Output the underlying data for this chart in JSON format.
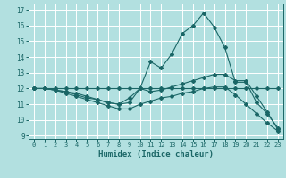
{
  "xlabel": "Humidex (Indice chaleur)",
  "bg_color": "#b2e0e0",
  "grid_color": "#ffffff",
  "line_color": "#1a6666",
  "xlim": [
    -0.5,
    23.5
  ],
  "ylim": [
    8.8,
    17.4
  ],
  "xticks": [
    0,
    1,
    2,
    3,
    4,
    5,
    6,
    7,
    8,
    9,
    10,
    11,
    12,
    13,
    14,
    15,
    16,
    17,
    18,
    19,
    20,
    21,
    22,
    23
  ],
  "yticks": [
    9,
    10,
    11,
    12,
    13,
    14,
    15,
    16,
    17
  ],
  "line1_x": [
    0,
    1,
    2,
    3,
    4,
    5,
    6,
    7,
    8,
    9,
    10,
    11,
    12,
    13,
    14,
    15,
    16,
    17,
    18,
    19,
    20,
    21,
    22,
    23
  ],
  "line1_y": [
    12,
    12,
    11.9,
    11.8,
    11.7,
    11.5,
    11.3,
    11.1,
    11.0,
    11.1,
    12.0,
    13.7,
    13.3,
    14.2,
    15.5,
    16.0,
    16.8,
    15.9,
    14.6,
    12.4,
    12.4,
    11.1,
    10.4,
    9.5
  ],
  "line2_x": [
    0,
    1,
    2,
    3,
    4,
    5,
    6,
    7,
    8,
    9,
    10,
    11,
    12,
    13,
    14,
    15,
    16,
    17,
    18,
    19,
    20,
    21,
    22,
    23
  ],
  "line2_y": [
    12,
    12,
    12,
    12,
    12,
    12,
    12,
    12,
    12,
    12,
    12,
    12,
    12,
    12,
    12,
    12,
    12,
    12,
    12,
    12,
    12,
    12,
    12,
    12
  ],
  "line3_x": [
    0,
    1,
    2,
    3,
    4,
    5,
    6,
    7,
    8,
    9,
    10,
    11,
    12,
    13,
    14,
    15,
    16,
    17,
    18,
    19,
    20,
    21,
    22,
    23
  ],
  "line3_y": [
    12,
    12,
    11.9,
    11.8,
    11.6,
    11.4,
    11.3,
    11.1,
    11.0,
    11.4,
    12.0,
    11.8,
    11.9,
    12.1,
    12.3,
    12.5,
    12.7,
    12.9,
    12.9,
    12.5,
    12.5,
    11.5,
    10.5,
    9.4
  ],
  "line4_x": [
    0,
    1,
    2,
    3,
    4,
    5,
    6,
    7,
    8,
    9,
    10,
    11,
    12,
    13,
    14,
    15,
    16,
    17,
    18,
    19,
    20,
    21,
    22,
    23
  ],
  "line4_y": [
    12,
    12,
    11.9,
    11.7,
    11.5,
    11.3,
    11.1,
    10.9,
    10.7,
    10.7,
    11.0,
    11.2,
    11.4,
    11.5,
    11.7,
    11.8,
    12.0,
    12.1,
    12.1,
    11.6,
    11.0,
    10.4,
    9.8,
    9.3
  ]
}
